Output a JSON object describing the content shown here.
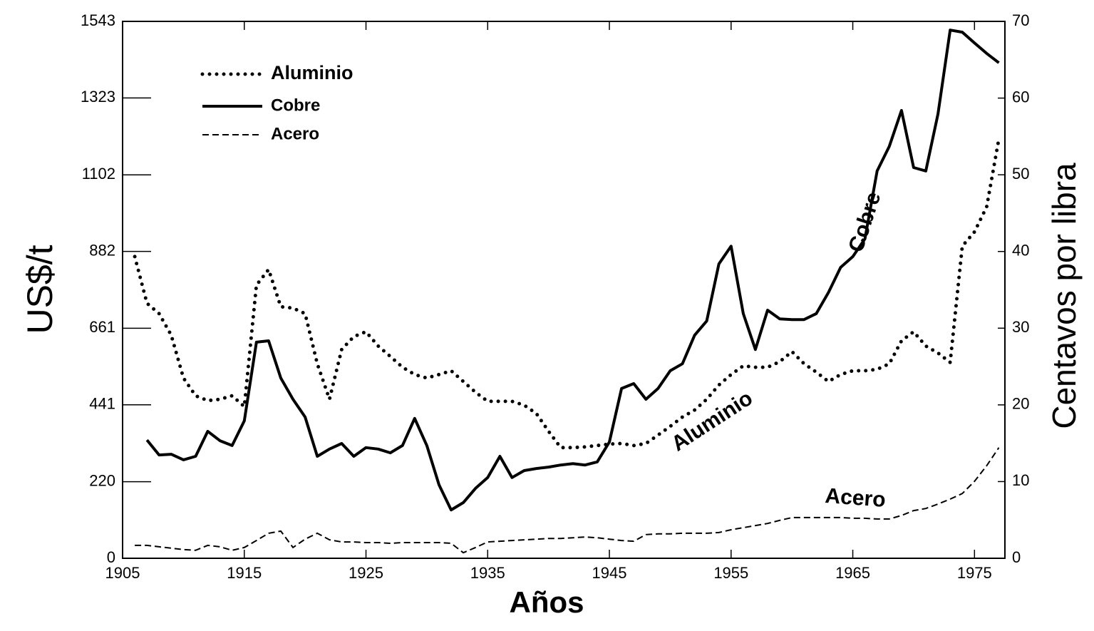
{
  "chart_data": {
    "type": "line",
    "x_label": "Años",
    "y_label": "US$/t",
    "y2_label": "Centavos por libra",
    "x": [
      1906,
      1907,
      1908,
      1909,
      1910,
      1911,
      1912,
      1913,
      1914,
      1915,
      1916,
      1917,
      1918,
      1919,
      1920,
      1921,
      1922,
      1923,
      1924,
      1925,
      1926,
      1927,
      1928,
      1929,
      1930,
      1931,
      1932,
      1933,
      1934,
      1935,
      1936,
      1937,
      1938,
      1939,
      1940,
      1941,
      1942,
      1943,
      1944,
      1945,
      1946,
      1947,
      1948,
      1949,
      1950,
      1951,
      1952,
      1953,
      1954,
      1955,
      1956,
      1957,
      1958,
      1959,
      1960,
      1961,
      1962,
      1963,
      1964,
      1965,
      1966,
      1967,
      1968,
      1969,
      1970,
      1971,
      1972,
      1973,
      1974,
      1975,
      1976,
      1977
    ],
    "xlim": [
      1905,
      1977.5
    ],
    "xticks": [
      1905,
      1915,
      1925,
      1935,
      1945,
      1955,
      1965,
      1975
    ],
    "ylim": [
      0,
      1543
    ],
    "yticks": [
      0,
      220,
      441,
      661,
      882,
      1102,
      1323,
      1543
    ],
    "y2lim": [
      0,
      70
    ],
    "y2ticks": [
      0,
      10,
      20,
      30,
      40,
      50,
      60,
      70
    ],
    "series": [
      {
        "name": "Aluminio",
        "color": "#000000",
        "style": "dotted",
        "values": [
          867,
          733,
          703,
          641,
          518,
          467,
          453,
          457,
          467,
          436,
          785,
          830,
          723,
          719,
          703,
          559,
          457,
          600,
          637,
          651,
          610,
          580,
          549,
          528,
          518,
          528,
          539,
          508,
          477,
          451,
          451,
          451,
          440,
          416,
          365,
          318,
          318,
          320,
          324,
          328,
          330,
          324,
          330,
          354,
          379,
          406,
          426,
          457,
          498,
          528,
          553,
          549,
          549,
          565,
          594,
          559,
          535,
          508,
          528,
          539,
          539,
          543,
          559,
          625,
          651,
          610,
          590,
          563,
          897,
          938,
          1010,
          1205
        ]
      },
      {
        "name": "Cobre",
        "color": "#000000",
        "style": "solid",
        "values": [
          null,
          340,
          297,
          299,
          283,
          293,
          365,
          338,
          324,
          395,
          621,
          625,
          518,
          457,
          406,
          293,
          314,
          330,
          293,
          318,
          314,
          303,
          324,
          402,
          324,
          211,
          139,
          160,
          201,
          232,
          293,
          232,
          252,
          258,
          262,
          268,
          272,
          268,
          277,
          334,
          488,
          502,
          457,
          488,
          539,
          559,
          641,
          682,
          846,
          897,
          703,
          600,
          713,
          688,
          686,
          686,
          703,
          764,
          836,
          867,
          918,
          1113,
          1184,
          1287,
          1123,
          1113,
          1277,
          1518,
          1512,
          1481,
          1451,
          1424
        ]
      },
      {
        "name": "Acero",
        "color": "#000000",
        "style": "dashed",
        "values": [
          37,
          37,
          33,
          29,
          25,
          23,
          37,
          33,
          23,
          31,
          51,
          72,
          78,
          31,
          55,
          72,
          53,
          47,
          47,
          45,
          45,
          43,
          45,
          45,
          45,
          45,
          43,
          16,
          31,
          47,
          49,
          51,
          53,
          55,
          57,
          57,
          59,
          61,
          59,
          55,
          51,
          49,
          68,
          70,
          70,
          72,
          72,
          72,
          74,
          82,
          88,
          94,
          100,
          109,
          117,
          117,
          117,
          117,
          117,
          115,
          115,
          113,
          113,
          123,
          137,
          143,
          156,
          170,
          186,
          221,
          266,
          318
        ]
      }
    ],
    "annotations": [
      "Cobre",
      "Aluminio",
      "Acero"
    ]
  }
}
